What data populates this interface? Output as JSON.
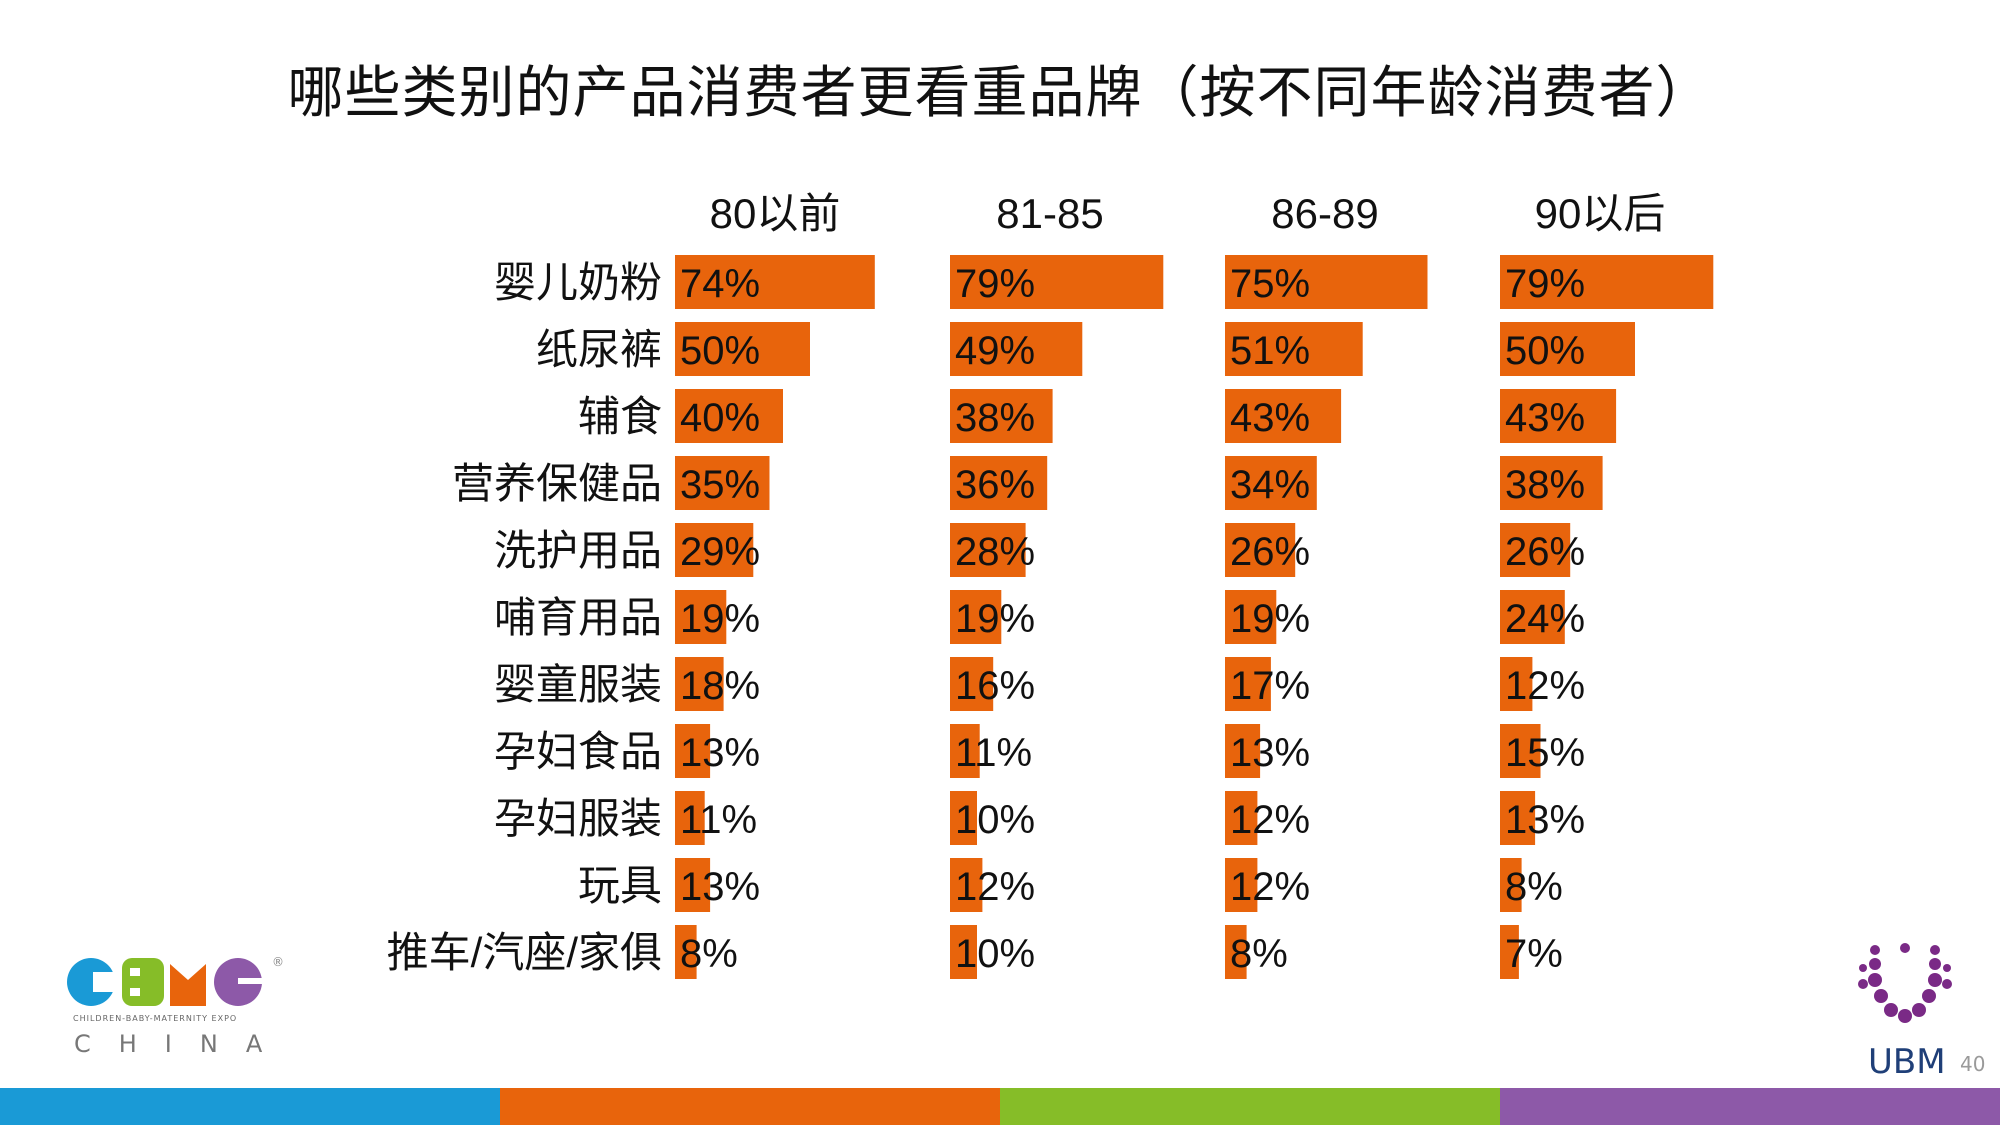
{
  "title": "哪些类别的产品消费者更看重品牌（按不同年龄消费者）",
  "colors": {
    "bar": "#e8640c",
    "text": "#111111",
    "stripes": [
      "#1a9ad6",
      "#e8640c",
      "#86bd28",
      "#8d59a8"
    ]
  },
  "chart_data": {
    "type": "bar",
    "orientation": "horizontal",
    "categories": [
      "婴儿奶粉",
      "纸尿裤",
      "辅食",
      "营养保健品",
      "洗护用品",
      "哺育用品",
      "婴童服装",
      "孕妇食品",
      "孕妇服装",
      "玩具",
      "推车/汽座/家俱"
    ],
    "series": [
      {
        "name": "80以前",
        "values": [
          74,
          50,
          40,
          35,
          29,
          19,
          18,
          13,
          11,
          13,
          8
        ]
      },
      {
        "name": "81-85",
        "values": [
          79,
          49,
          38,
          36,
          28,
          19,
          16,
          11,
          10,
          12,
          10
        ]
      },
      {
        "name": "86-89",
        "values": [
          75,
          51,
          43,
          34,
          26,
          19,
          17,
          13,
          12,
          12,
          8
        ]
      },
      {
        "name": "90以后",
        "values": [
          79,
          50,
          43,
          38,
          26,
          24,
          12,
          15,
          13,
          8,
          7
        ]
      }
    ],
    "value_suffix": "%",
    "xlim": [
      0,
      100
    ],
    "grid": false,
    "legend": "none"
  },
  "logos": {
    "cbme": {
      "word": "CBME",
      "subtitle": "CHILDREN-BABY-MATERNITY EXPO",
      "tagline": "CHINA",
      "mark": "®"
    },
    "ubm": {
      "word": "UBM"
    }
  },
  "page_number": "40"
}
